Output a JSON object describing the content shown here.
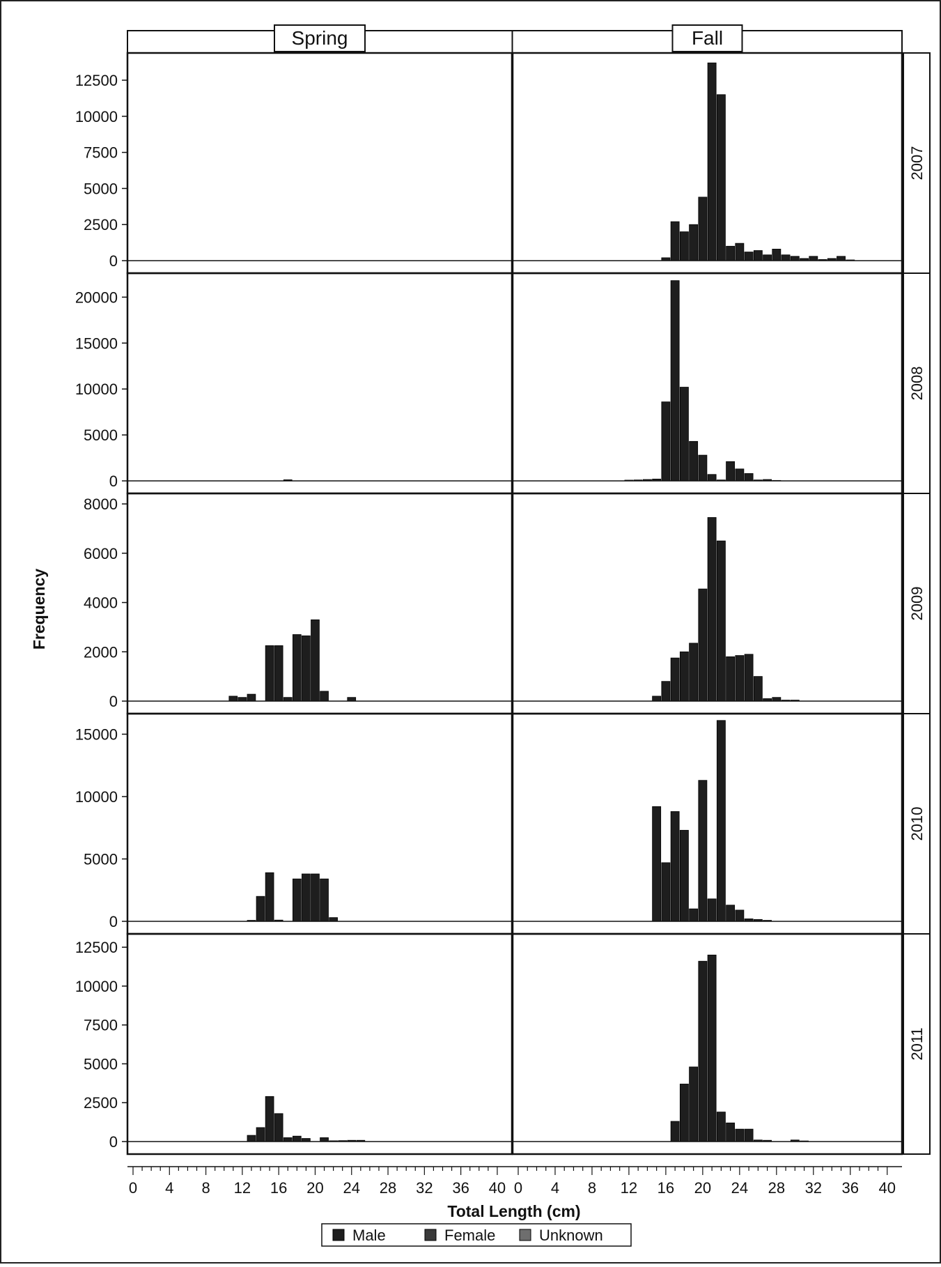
{
  "chart_data": {
    "type": "bar",
    "layout": "panel grid (rows = year, columns = season)",
    "columns": [
      "Spring",
      "Fall"
    ],
    "rows": [
      "2007",
      "2008",
      "2009",
      "2010",
      "2011"
    ],
    "xlabel": "Total Length (cm)",
    "ylabel": "Frequency",
    "xlim": [
      0,
      41
    ],
    "xticks": [
      0,
      4,
      8,
      12,
      16,
      20,
      24,
      28,
      32,
      36,
      40
    ],
    "legend": {
      "placement": "bottom-center",
      "items": [
        {
          "name": "Male",
          "color": "#1e1e1e"
        },
        {
          "name": "Female",
          "color": "#3a3a3a"
        },
        {
          "name": "Unknown",
          "color": "#6e6e6e"
        }
      ]
    },
    "grid": false,
    "panels": [
      {
        "year": "2007",
        "ylim": [
          0,
          14000
        ],
        "yticks": [
          0,
          2500,
          5000,
          7500,
          10000,
          12500
        ],
        "spring": [],
        "fall": [
          {
            "x": 16,
            "value": 200
          },
          {
            "x": 17,
            "value": 2700
          },
          {
            "x": 18,
            "value": 2000
          },
          {
            "x": 19,
            "value": 2500
          },
          {
            "x": 20,
            "value": 4400
          },
          {
            "x": 21,
            "value": 13700
          },
          {
            "x": 22,
            "value": 11500
          },
          {
            "x": 23,
            "value": 1000
          },
          {
            "x": 24,
            "value": 1200
          },
          {
            "x": 25,
            "value": 600
          },
          {
            "x": 26,
            "value": 700
          },
          {
            "x": 27,
            "value": 400
          },
          {
            "x": 28,
            "value": 800
          },
          {
            "x": 29,
            "value": 400
          },
          {
            "x": 30,
            "value": 300
          },
          {
            "x": 31,
            "value": 150
          },
          {
            "x": 32,
            "value": 300
          },
          {
            "x": 33,
            "value": 80
          },
          {
            "x": 34,
            "value": 150
          },
          {
            "x": 35,
            "value": 300
          },
          {
            "x": 36,
            "value": 50
          }
        ]
      },
      {
        "year": "2008",
        "ylim": [
          0,
          22000
        ],
        "yticks": [
          0,
          5000,
          10000,
          15000,
          20000
        ],
        "spring": [
          {
            "x": 17,
            "value": 120
          }
        ],
        "fall": [
          {
            "x": 12,
            "value": 80
          },
          {
            "x": 13,
            "value": 100
          },
          {
            "x": 14,
            "value": 150
          },
          {
            "x": 15,
            "value": 200
          },
          {
            "x": 16,
            "value": 8600
          },
          {
            "x": 17,
            "value": 21800
          },
          {
            "x": 18,
            "value": 10200
          },
          {
            "x": 19,
            "value": 4300
          },
          {
            "x": 20,
            "value": 2800
          },
          {
            "x": 21,
            "value": 700
          },
          {
            "x": 22,
            "value": 100
          },
          {
            "x": 23,
            "value": 2100
          },
          {
            "x": 24,
            "value": 1300
          },
          {
            "x": 25,
            "value": 800
          },
          {
            "x": 26,
            "value": 100
          },
          {
            "x": 27,
            "value": 150
          },
          {
            "x": 28,
            "value": 50
          }
        ]
      },
      {
        "year": "2009",
        "ylim": [
          0,
          8200
        ],
        "yticks": [
          0,
          2000,
          4000,
          6000,
          8000
        ],
        "spring": [
          {
            "x": 11,
            "value": 200
          },
          {
            "x": 12,
            "value": 150
          },
          {
            "x": 13,
            "value": 280
          },
          {
            "x": 15,
            "value": 2250
          },
          {
            "x": 16,
            "value": 2250
          },
          {
            "x": 17,
            "value": 150
          },
          {
            "x": 18,
            "value": 2700
          },
          {
            "x": 19,
            "value": 2650
          },
          {
            "x": 20,
            "value": 3300
          },
          {
            "x": 21,
            "value": 400
          },
          {
            "x": 24,
            "value": 150
          }
        ],
        "fall": [
          {
            "x": 15,
            "value": 200
          },
          {
            "x": 16,
            "value": 800
          },
          {
            "x": 17,
            "value": 1750
          },
          {
            "x": 18,
            "value": 2000
          },
          {
            "x": 19,
            "value": 2350
          },
          {
            "x": 20,
            "value": 4550
          },
          {
            "x": 21,
            "value": 7450
          },
          {
            "x": 22,
            "value": 6500
          },
          {
            "x": 23,
            "value": 1800
          },
          {
            "x": 24,
            "value": 1850
          },
          {
            "x": 25,
            "value": 1900
          },
          {
            "x": 26,
            "value": 1000
          },
          {
            "x": 27,
            "value": 100
          },
          {
            "x": 28,
            "value": 150
          },
          {
            "x": 29,
            "value": 40
          },
          {
            "x": 30,
            "value": 40
          }
        ]
      },
      {
        "year": "2010",
        "ylim": [
          0,
          16200
        ],
        "yticks": [
          0,
          5000,
          10000,
          15000
        ],
        "spring": [
          {
            "x": 13,
            "value": 80
          },
          {
            "x": 14,
            "value": 2000
          },
          {
            "x": 15,
            "value": 3900
          },
          {
            "x": 16,
            "value": 100
          },
          {
            "x": 18,
            "value": 3400
          },
          {
            "x": 19,
            "value": 3800
          },
          {
            "x": 20,
            "value": 3800
          },
          {
            "x": 21,
            "value": 3400
          },
          {
            "x": 22,
            "value": 300
          }
        ],
        "fall": [
          {
            "x": 15,
            "value": 9200
          },
          {
            "x": 16,
            "value": 4700
          },
          {
            "x": 17,
            "value": 8800
          },
          {
            "x": 18,
            "value": 7300
          },
          {
            "x": 19,
            "value": 1000
          },
          {
            "x": 20,
            "value": 11300
          },
          {
            "x": 21,
            "value": 1800
          },
          {
            "x": 22,
            "value": 16100
          },
          {
            "x": 23,
            "value": 1300
          },
          {
            "x": 24,
            "value": 900
          },
          {
            "x": 25,
            "value": 200
          },
          {
            "x": 26,
            "value": 150
          },
          {
            "x": 27,
            "value": 80
          }
        ]
      },
      {
        "year": "2011",
        "ylim": [
          0,
          13000
        ],
        "yticks": [
          0,
          2500,
          5000,
          7500,
          10000,
          12500
        ],
        "spring": [
          {
            "x": 13,
            "value": 400
          },
          {
            "x": 14,
            "value": 900
          },
          {
            "x": 15,
            "value": 2900
          },
          {
            "x": 16,
            "value": 1800
          },
          {
            "x": 17,
            "value": 250
          },
          {
            "x": 18,
            "value": 350
          },
          {
            "x": 19,
            "value": 200
          },
          {
            "x": 21,
            "value": 250
          },
          {
            "x": 22,
            "value": 50
          },
          {
            "x": 23,
            "value": 60
          },
          {
            "x": 24,
            "value": 80
          },
          {
            "x": 25,
            "value": 80
          }
        ],
        "fall": [
          {
            "x": 17,
            "value": 1300
          },
          {
            "x": 18,
            "value": 3700
          },
          {
            "x": 19,
            "value": 4800
          },
          {
            "x": 20,
            "value": 11600
          },
          {
            "x": 21,
            "value": 12000
          },
          {
            "x": 22,
            "value": 1900
          },
          {
            "x": 23,
            "value": 1200
          },
          {
            "x": 24,
            "value": 800
          },
          {
            "x": 25,
            "value": 800
          },
          {
            "x": 26,
            "value": 100
          },
          {
            "x": 27,
            "value": 80
          },
          {
            "x": 30,
            "value": 100
          },
          {
            "x": 31,
            "value": 40
          }
        ]
      }
    ]
  }
}
